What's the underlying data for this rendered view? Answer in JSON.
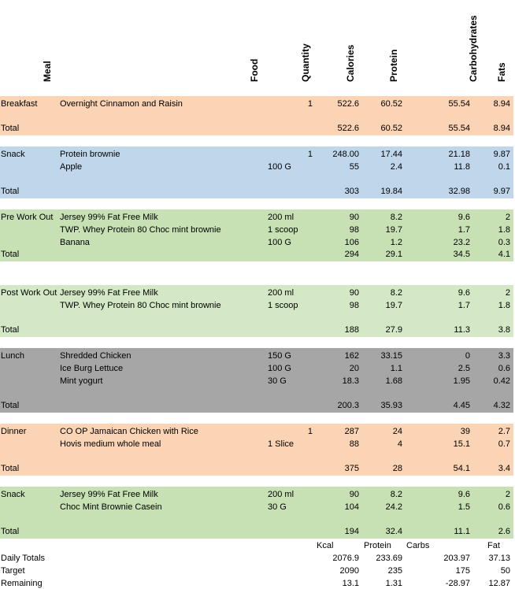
{
  "headers": {
    "meal": "Meal",
    "food": "Food",
    "quantity": "Quantity",
    "calories": "Calories",
    "protein": "Protein",
    "carbohydrates": "Carbohydrates",
    "fats": "Fats"
  },
  "colors": {
    "breakfast": "#fad4b4",
    "snack1": "#c0d6ea",
    "preworkout": "#c7e1b5",
    "postworkout": "#d4e8c6",
    "lunch": "#a6a6a6",
    "dinner": "#fad4b4",
    "snack2": "#c7e1b5"
  },
  "sections": [
    {
      "rows": [
        {
          "meal": "Breakfast",
          "food": "Overnight Cinnamon and Raisin",
          "unit": "",
          "qty": "1",
          "cal": "522.6",
          "pro": "60.52",
          "carb": "55.54",
          "fat": "8.94"
        }
      ],
      "total": {
        "label": "Total",
        "cal": "522.6",
        "pro": "60.52",
        "carb": "55.54",
        "fat": "8.94"
      }
    },
    {
      "rows": [
        {
          "meal": "Snack",
          "food": "Protein brownie",
          "unit": "",
          "qty": "1",
          "cal": "248.00",
          "pro": "17.44",
          "carb": "21.18",
          "fat": "9.87"
        },
        {
          "meal": "",
          "food": "Apple",
          "unit": "100 G",
          "qty": "",
          "cal": "55",
          "pro": "2.4",
          "carb": "11.8",
          "fat": "0.1"
        }
      ],
      "total": {
        "label": "Total",
        "cal": "303",
        "pro": "19.84",
        "carb": "32.98",
        "fat": "9.97"
      }
    },
    {
      "rows": [
        {
          "meal": "Pre Work Out",
          "food": "Jersey 99% Fat Free Milk",
          "unit": "200 ml",
          "qty": "",
          "cal": "90",
          "pro": "8.2",
          "carb": "9.6",
          "fat": "2"
        },
        {
          "meal": "",
          "food": "TWP. Whey Protein 80 Choc mint brownie",
          "unit": "1 scoop",
          "qty": "",
          "cal": "98",
          "pro": "19.7",
          "carb": "1.7",
          "fat": "1.8"
        },
        {
          "meal": "",
          "food": "Banana",
          "unit": "100 G",
          "qty": "",
          "cal": "106",
          "pro": "1.2",
          "carb": "23.2",
          "fat": "0.3"
        }
      ],
      "total": {
        "label": "Total",
        "cal": "294",
        "pro": "29.1",
        "carb": "34.5",
        "fat": "4.1"
      }
    },
    {
      "rows": [
        {
          "meal": "Post Work Out",
          "food": "Jersey 99% Fat Free Milk",
          "unit": "200 ml",
          "qty": "",
          "cal": "90",
          "pro": "8.2",
          "carb": "9.6",
          "fat": "2"
        },
        {
          "meal": "",
          "food": "TWP. Whey Protein 80 Choc mint brownie",
          "unit": "1 scoop",
          "qty": "",
          "cal": "98",
          "pro": "19.7",
          "carb": "1.7",
          "fat": "1.8"
        }
      ],
      "total": {
        "label": "Total",
        "cal": "188",
        "pro": "27.9",
        "carb": "11.3",
        "fat": "3.8"
      }
    },
    {
      "rows": [
        {
          "meal": "Lunch",
          "food": "Shredded Chicken",
          "unit": "150 G",
          "qty": "",
          "cal": "162",
          "pro": "33.15",
          "carb": "0",
          "fat": "3.3"
        },
        {
          "meal": "",
          "food": "Ice Burg Lettuce",
          "unit": "100 G",
          "qty": "",
          "cal": "20",
          "pro": "1.1",
          "carb": "2.5",
          "fat": "0.6"
        },
        {
          "meal": "",
          "food": "Mint yogurt",
          "unit": "30 G",
          "qty": "",
          "cal": "18.3",
          "pro": "1.68",
          "carb": "1.95",
          "fat": "0.42"
        }
      ],
      "total": {
        "label": "Total",
        "cal": "200.3",
        "pro": "35.93",
        "carb": "4.45",
        "fat": "4.32"
      }
    },
    {
      "rows": [
        {
          "meal": "Dinner",
          "food": "CO OP Jamaican Chicken with Rice",
          "unit": "",
          "qty": "1",
          "cal": "287",
          "pro": "24",
          "carb": "39",
          "fat": "2.7"
        },
        {
          "meal": "",
          "food": "Hovis medium whole meal",
          "unit": "1 Slice",
          "qty": "",
          "cal": "88",
          "pro": "4",
          "carb": "15.1",
          "fat": "0.7"
        }
      ],
      "total": {
        "label": "Total",
        "cal": "375",
        "pro": "28",
        "carb": "54.1",
        "fat": "3.4"
      }
    },
    {
      "rows": [
        {
          "meal": "Snack",
          "food": "Jersey 99% Fat Free Milk",
          "unit": "200 ml",
          "qty": "",
          "cal": "90",
          "pro": "8.2",
          "carb": "9.6",
          "fat": "2"
        },
        {
          "meal": "",
          "food": "Choc Mint Brownie Casein",
          "unit": "30 G",
          "qty": "",
          "cal": "104",
          "pro": "24.2",
          "carb": "1.5",
          "fat": "0.6"
        }
      ],
      "total": {
        "label": "Total",
        "cal": "194",
        "pro": "32.4",
        "carb": "11.1",
        "fat": "2.6"
      }
    }
  ],
  "summary_headers": {
    "kcal": "Kcal",
    "protein": "Protein",
    "carbs": "Carbs",
    "fat": "Fat"
  },
  "summary": [
    {
      "label": "Daily Totals",
      "cal": "2076.9",
      "pro": "233.69",
      "carb": "203.97",
      "fat": "37.13"
    },
    {
      "label": "Target",
      "cal": "2090",
      "pro": "235",
      "carb": "175",
      "fat": "50"
    },
    {
      "label": "Remaining",
      "cal": "13.1",
      "pro": "1.31",
      "carb": "-28.97",
      "fat": "12.87"
    }
  ]
}
